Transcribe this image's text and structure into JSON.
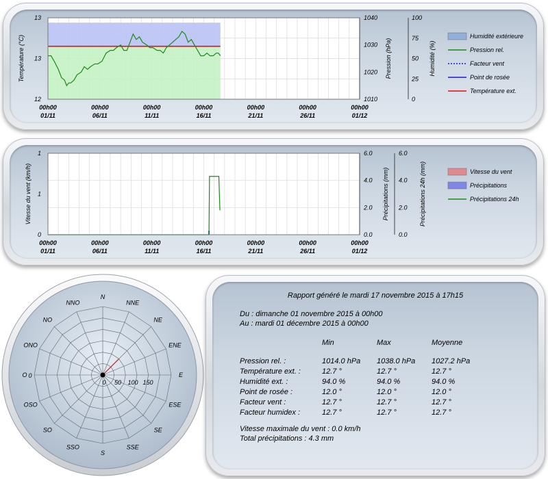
{
  "chart_data": [
    {
      "type": "line",
      "x_ticks": [
        {
          "time": "00h00",
          "date": "01/11"
        },
        {
          "time": "00h00",
          "date": "06/11"
        },
        {
          "time": "00h00",
          "date": "11/11"
        },
        {
          "time": "00h00",
          "date": "16/11"
        },
        {
          "time": "00h00",
          "date": "21/11"
        },
        {
          "time": "00h00",
          "date": "26/11"
        },
        {
          "time": "00h00",
          "date": "01/12"
        }
      ],
      "x_range_days": [
        0,
        30
      ],
      "axes": {
        "temperature": {
          "label": "Température (°C)",
          "ticks": [
            "13",
            "13",
            "12"
          ]
        },
        "pressure": {
          "label": "Pression (hPa)",
          "ticks": [
            "1040",
            "1030",
            "1020",
            "1010"
          ],
          "range": [
            1010,
            1040
          ]
        },
        "humidity": {
          "label": "Humidité (%)",
          "ticks": [
            "100",
            "75",
            "50",
            "25",
            "0"
          ],
          "range": [
            0,
            100
          ]
        }
      },
      "legend": [
        {
          "name": "Humidité extérieure",
          "color": "#8fb0d8",
          "style": "box"
        },
        {
          "name": "Pression rel.",
          "color": "#1a8a1a",
          "style": "line"
        },
        {
          "name": "Facteur vent",
          "color": "#1a1acc",
          "style": "dash"
        },
        {
          "name": "Point de rosée",
          "color": "#1a1acc",
          "style": "line"
        },
        {
          "name": "Température ext.",
          "color": "#e01010",
          "style": "line"
        }
      ],
      "series": [
        {
          "name": "Humidité extérieure",
          "axis": "humidity",
          "x": [
            0,
            16.6
          ],
          "values": [
            94,
            94
          ]
        },
        {
          "name": "Température ext.",
          "axis": "pressure_equiv",
          "x": [
            0,
            16.6
          ],
          "values": [
            1029.5,
            1029.5
          ]
        },
        {
          "name": "Pression rel.",
          "axis": "pressure",
          "x": [
            0,
            0.3,
            0.6,
            1.0,
            1.3,
            1.6,
            1.8,
            2.0,
            2.2,
            2.5,
            2.8,
            3.2,
            3.5,
            3.8,
            4.1,
            4.5,
            4.8,
            5.2,
            5.6,
            6.0,
            6.3,
            6.6,
            7.0,
            7.3,
            7.6,
            7.9,
            8.2,
            8.5,
            8.8,
            9.1,
            9.5,
            9.8,
            10.1,
            10.5,
            10.8,
            11.1,
            11.4,
            11.7,
            12.0,
            12.3,
            12.6,
            12.9,
            13.2,
            13.5,
            13.8,
            14.1,
            14.4,
            14.7,
            15.0,
            15.3,
            15.6,
            15.9,
            16.2,
            16.4,
            16.6
          ],
          "values": [
            1026,
            1026,
            1024,
            1021,
            1018,
            1017,
            1015,
            1016,
            1016,
            1017,
            1019,
            1020,
            1022,
            1021,
            1022,
            1023,
            1023,
            1024,
            1027,
            1028,
            1028,
            1029,
            1030,
            1028,
            1028,
            1031,
            1034,
            1032,
            1033,
            1031,
            1030,
            1029,
            1029,
            1028,
            1028,
            1027,
            1029,
            1030,
            1031,
            1032,
            1033,
            1035,
            1034,
            1031,
            1032,
            1030,
            1028,
            1026,
            1026,
            1027,
            1026,
            1026,
            1027,
            1027,
            1026
          ]
        }
      ]
    },
    {
      "type": "line",
      "x_ticks": [
        {
          "time": "00h00",
          "date": "01/11"
        },
        {
          "time": "00h00",
          "date": "06/11"
        },
        {
          "time": "00h00",
          "date": "11/11"
        },
        {
          "time": "00h00",
          "date": "16/11"
        },
        {
          "time": "00h00",
          "date": "21/11"
        },
        {
          "time": "00h00",
          "date": "26/11"
        },
        {
          "time": "00h00",
          "date": "01/12"
        }
      ],
      "x_range_days": [
        0,
        30
      ],
      "axes": {
        "wind": {
          "label": "Vitesse du vent (km/h)",
          "ticks": [
            "1",
            "1",
            "0"
          ]
        },
        "rain": {
          "label": "Précipitations (mm)",
          "ticks": [
            "6.0",
            "4.0",
            "2.0",
            "0.0"
          ],
          "range": [
            0,
            6
          ]
        },
        "rain24": {
          "label": "Précipitations 24h (mm)",
          "ticks": [
            "6.0",
            "4.0",
            "2.0",
            "0.0"
          ],
          "range": [
            0,
            6
          ]
        }
      },
      "legend": [
        {
          "name": "Vitesse du vent",
          "color": "#e08a90",
          "style": "box"
        },
        {
          "name": "Précipitations",
          "color": "#7f84e8",
          "style": "box"
        },
        {
          "name": "Précipitations 24h",
          "color": "#1a8a1a",
          "style": "line"
        }
      ],
      "series": [
        {
          "name": "Précipitations 24h",
          "axis": "rain24",
          "x": [
            0,
            15.4,
            15.5,
            15.55,
            16.4,
            16.45,
            16.55
          ],
          "values": [
            0,
            0,
            0,
            4.3,
            4.3,
            4.3,
            1.8
          ]
        },
        {
          "name": "Précipitations",
          "axis": "rain",
          "x": [
            15.5
          ],
          "values": [
            0.3
          ]
        }
      ]
    },
    {
      "type": "polar",
      "directions": [
        "N",
        "NNE",
        "NE",
        "ENE",
        "E",
        "ESE",
        "SE",
        "SSE",
        "S",
        "SSO",
        "SO",
        "OSO",
        "O",
        "ONO",
        "NO",
        "NNO"
      ],
      "radial_ticks": [
        "0",
        "50",
        "100",
        "150"
      ],
      "radial_max": 150,
      "center_label": "0",
      "vector": {
        "direction_deg": 45,
        "magnitude": 50
      }
    }
  ],
  "report": {
    "title": "Rapport généré le mardi 17 novembre 2015 à 17h15",
    "from": "Du : dimanche 01 novembre 2015 à 00h00",
    "to": "Au : mardi 01 décembre 2015 à 00h00",
    "headers": [
      "Min",
      "Max",
      "Moyenne"
    ],
    "rows": [
      {
        "label": "Pression rel. :",
        "min": "1014.0 hPa",
        "max": "1038.0 hPa",
        "avg": "1027.2 hPa"
      },
      {
        "label": "Température ext. :",
        "min": "12.7 °",
        "max": "12.7 °",
        "avg": "12.7 °"
      },
      {
        "label": "Humidité ext. :",
        "min": "94.0 %",
        "max": "94.0 %",
        "avg": "94.0 %"
      },
      {
        "label": "Point de rosée :",
        "min": "12.0 °",
        "max": "12.0 °",
        "avg": "12.0 °"
      },
      {
        "label": "Facteur vent :",
        "min": "12.7 °",
        "max": "12.7 °",
        "avg": "12.7 °"
      },
      {
        "label": "Facteur humidex :",
        "min": "12.7 °",
        "max": "12.7 °",
        "avg": "12.7 °"
      }
    ],
    "wind_max": "Vitesse maximale du vent : 0.0 km/h",
    "total_rain": "Total précipitations : 4.3 mm"
  }
}
